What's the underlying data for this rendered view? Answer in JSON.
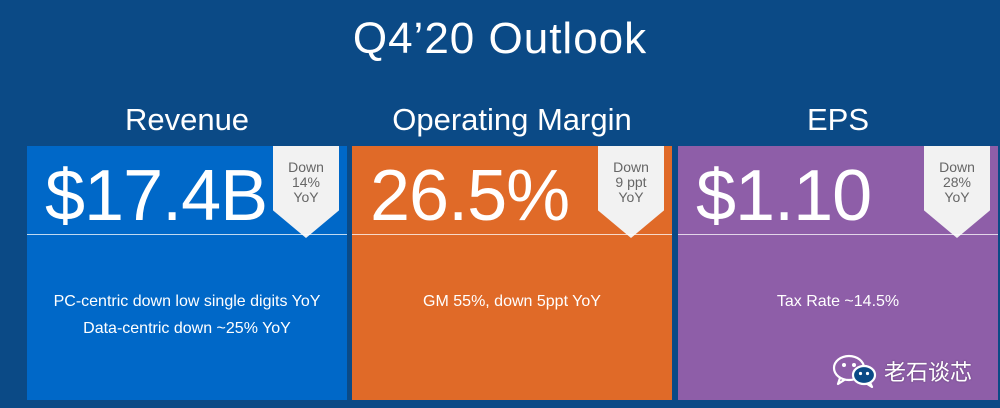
{
  "slide": {
    "title": "Q4’20 Outlook"
  },
  "columns": [
    {
      "title": "Revenue",
      "metric": "$17.4B",
      "badge": [
        "Down",
        "14%",
        "YoY"
      ],
      "notes": [
        "PC-centric down low single digits YoY",
        "Data-centric down ~25% YoY"
      ],
      "color": "#0068c8"
    },
    {
      "title": "Operating Margin",
      "metric": "26.5%",
      "badge": [
        "Down",
        "9 ppt",
        "YoY"
      ],
      "notes": [
        "GM 55%, down 5ppt YoY"
      ],
      "color": "#e06a28"
    },
    {
      "title": "EPS",
      "metric": "$1.10",
      "badge": [
        "Down",
        "28%",
        "YoY"
      ],
      "notes": [
        "Tax Rate ~14.5%"
      ],
      "color": "#8e5ea8"
    }
  ],
  "watermark": {
    "text": "老石谈芯",
    "icon": "wechat-icon"
  },
  "background_color": "#0b4a86"
}
